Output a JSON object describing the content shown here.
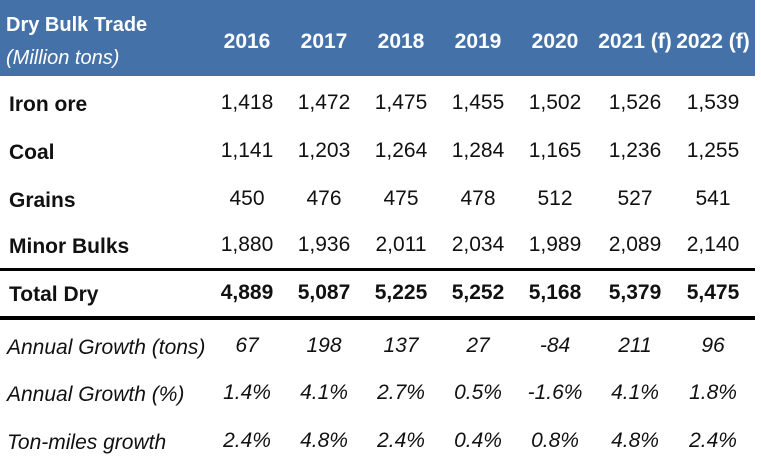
{
  "header": {
    "title": "Dry Bulk Trade",
    "subtitle": "(Million tons)",
    "years": [
      "2016",
      "2017",
      "2018",
      "2019",
      "2020",
      "2021 (f)",
      "2022 (f)"
    ]
  },
  "rows": [
    {
      "label": "Iron ore",
      "values": [
        "1,418",
        "1,472",
        "1,475",
        "1,455",
        "1,502",
        "1,526",
        "1,539"
      ]
    },
    {
      "label": "Coal",
      "values": [
        "1,141",
        "1,203",
        "1,264",
        "1,284",
        "1,165",
        "1,236",
        "1,255"
      ]
    },
    {
      "label": "Grains",
      "values": [
        "450",
        "476",
        "475",
        "478",
        "512",
        "527",
        "541"
      ]
    },
    {
      "label": "Minor Bulks",
      "values": [
        "1,880",
        "1,936",
        "2,011",
        "2,034",
        "1,989",
        "2,089",
        "2,140"
      ]
    }
  ],
  "total": {
    "label": "Total Dry",
    "values": [
      "4,889",
      "5,087",
      "5,225",
      "5,252",
      "5,168",
      "5,379",
      "5,475"
    ]
  },
  "growth_rows": [
    {
      "label": "Annual Growth (tons)",
      "values": [
        "67",
        "198",
        "137",
        "27",
        "-84",
        "211",
        "96"
      ]
    },
    {
      "label": "Annual Growth (%)",
      "values": [
        "1.4%",
        "4.1%",
        "2.7%",
        "0.5%",
        "-1.6%",
        "4.1%",
        "1.8%"
      ]
    },
    {
      "label": "Ton-miles growth",
      "values": [
        "2.4%",
        "4.8%",
        "2.4%",
        "0.4%",
        "0.8%",
        "4.8%",
        "2.4%"
      ]
    }
  ],
  "colors": {
    "header_bg": "#4472a8",
    "header_text": "#ffffff",
    "rule": "#000000"
  }
}
